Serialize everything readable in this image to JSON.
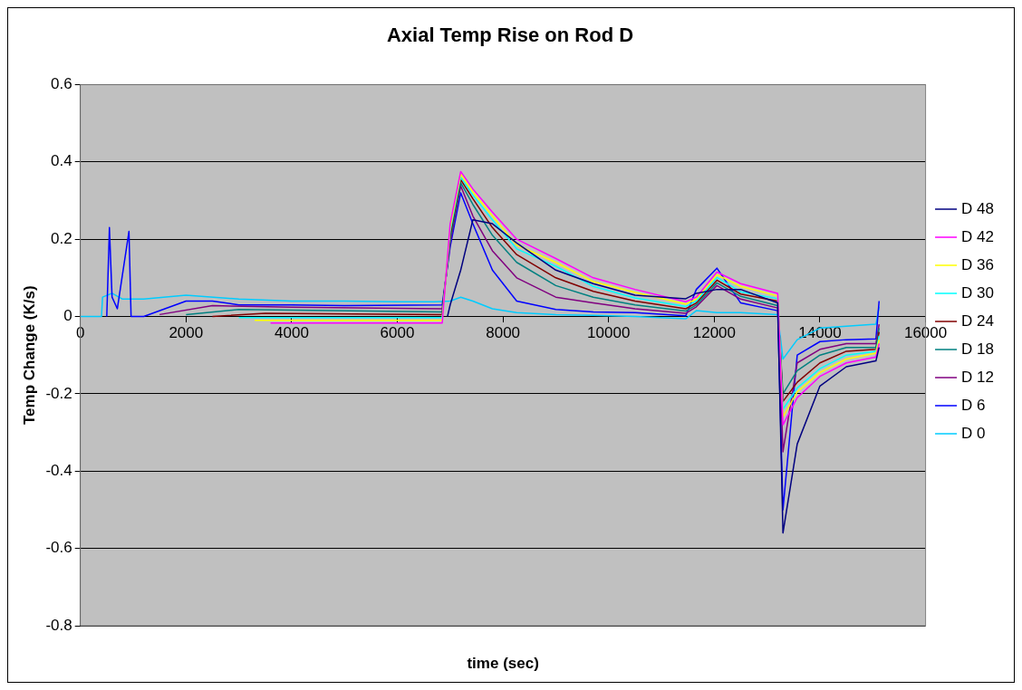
{
  "chart_data": {
    "type": "line",
    "title": "Axial Temp Rise on Rod D",
    "xlabel": "time (sec)",
    "ylabel": "Temp Change (K/s)",
    "xlim": [
      0,
      16000
    ],
    "xticks": [
      0,
      2000,
      4000,
      6000,
      8000,
      10000,
      12000,
      14000,
      16000
    ],
    "ylim": [
      -0.8,
      0.6
    ],
    "yticks": [
      -0.8,
      -0.6,
      -0.4,
      -0.2,
      0,
      0.2,
      0.4,
      0.6
    ],
    "grid": "y",
    "legend": "right",
    "marker": "none",
    "line_style": "solid",
    "series": [
      {
        "name": "D 48",
        "color": "#000080",
        "x": [
          6950,
          7000,
          7200,
          7430,
          7800,
          8260,
          9000,
          9710,
          10500,
          11460,
          11660,
          12050,
          12500,
          13200,
          13300,
          13570,
          14000,
          14500,
          15060,
          15120
        ],
        "values": [
          0,
          0.03,
          0.12,
          0.25,
          0.24,
          0.19,
          0.12,
          0.085,
          0.055,
          0.046,
          0.06,
          0.07,
          0.07,
          0.035,
          -0.56,
          -0.33,
          -0.18,
          -0.13,
          -0.115,
          -0.08
        ]
      },
      {
        "name": "D 42",
        "color": "#ff00ff",
        "x": [
          3600,
          6850,
          7000,
          7200,
          7430,
          7800,
          8260,
          9000,
          9710,
          10500,
          11460,
          11660,
          12050,
          12500,
          13200,
          13300,
          13570,
          14000,
          14500,
          15060,
          15120
        ],
        "values": [
          -0.017,
          -0.017,
          0.24,
          0.375,
          0.33,
          0.27,
          0.2,
          0.15,
          0.1,
          0.07,
          0.038,
          0.05,
          0.115,
          0.085,
          0.06,
          -0.28,
          -0.21,
          -0.155,
          -0.12,
          -0.105,
          -0.07
        ]
      },
      {
        "name": "D 36",
        "color": "#ffff00",
        "x": [
          3300,
          6850,
          7000,
          7200,
          7430,
          7800,
          8260,
          9000,
          9710,
          10500,
          11460,
          11660,
          12050,
          12500,
          13200,
          13300,
          13570,
          14000,
          14500,
          15060,
          15120
        ],
        "values": [
          -0.01,
          -0.01,
          0.23,
          0.368,
          0.322,
          0.26,
          0.185,
          0.14,
          0.09,
          0.062,
          0.032,
          0.045,
          0.108,
          0.078,
          0.053,
          -0.26,
          -0.195,
          -0.145,
          -0.11,
          -0.095,
          -0.06
        ]
      },
      {
        "name": "D 30",
        "color": "#00ffff",
        "x": [
          3000,
          6850,
          7000,
          7200,
          7430,
          7800,
          8260,
          9000,
          9710,
          10500,
          11460,
          11660,
          12050,
          12500,
          13200,
          13300,
          13570,
          14000,
          14500,
          15060,
          15120
        ],
        "values": [
          -0.003,
          -0.003,
          0.22,
          0.361,
          0.314,
          0.25,
          0.175,
          0.13,
          0.078,
          0.048,
          0.026,
          0.04,
          0.101,
          0.064,
          0.046,
          -0.24,
          -0.185,
          -0.135,
          -0.1,
          -0.09,
          -0.05
        ]
      },
      {
        "name": "D 24",
        "color": "#800000",
        "x": [
          2500,
          3500,
          6850,
          7000,
          7200,
          7430,
          7800,
          8260,
          9000,
          9710,
          10500,
          11460,
          11660,
          12050,
          12500,
          13200,
          13300,
          13570,
          14000,
          14500,
          15060,
          15120
        ],
        "values": [
          0,
          0.008,
          0.005,
          0.21,
          0.354,
          0.305,
          0.23,
          0.16,
          0.1,
          0.065,
          0.04,
          0.02,
          0.035,
          0.094,
          0.058,
          0.04,
          -0.22,
          -0.17,
          -0.12,
          -0.09,
          -0.085,
          -0.04
        ]
      },
      {
        "name": "D 18",
        "color": "#008080",
        "x": [
          2000,
          3000,
          6850,
          7000,
          7200,
          7430,
          7800,
          8260,
          9000,
          9710,
          10500,
          11460,
          11660,
          12050,
          12500,
          13200,
          13300,
          13570,
          14000,
          14500,
          15060,
          15120
        ],
        "values": [
          0.005,
          0.018,
          0.012,
          0.2,
          0.346,
          0.29,
          0.21,
          0.14,
          0.08,
          0.05,
          0.03,
          0.014,
          0.03,
          0.087,
          0.052,
          0.028,
          -0.2,
          -0.14,
          -0.1,
          -0.08,
          -0.08,
          -0.03
        ]
      },
      {
        "name": "D 12",
        "color": "#800080",
        "x": [
          1500,
          2500,
          4000,
          6850,
          7000,
          7200,
          7430,
          7800,
          8260,
          9000,
          9710,
          10500,
          11460,
          11660,
          12050,
          12500,
          13200,
          13300,
          13570,
          14000,
          14500,
          15060,
          15120
        ],
        "values": [
          0.005,
          0.028,
          0.024,
          0.02,
          0.19,
          0.338,
          0.26,
          0.17,
          0.1,
          0.05,
          0.035,
          0.02,
          0.008,
          0.025,
          0.08,
          0.045,
          0.022,
          -0.35,
          -0.12,
          -0.085,
          -0.07,
          -0.07,
          -0.02
        ]
      },
      {
        "name": "D 6",
        "color": "#0000ff",
        "x": [
          500,
          550,
          600,
          700,
          920,
          960,
          1200,
          2000,
          2500,
          3000,
          4000,
          5000,
          6850,
          7000,
          7200,
          7430,
          7800,
          8260,
          9000,
          9710,
          10500,
          11460,
          11660,
          12050,
          12500,
          13200,
          13300,
          13570,
          14000,
          14500,
          15060,
          15120
        ],
        "values": [
          0,
          0.23,
          0.05,
          0.02,
          0.22,
          0,
          0,
          0.04,
          0.04,
          0.03,
          0.03,
          0.028,
          0.03,
          0.18,
          0.32,
          0.24,
          0.12,
          0.04,
          0.018,
          0.012,
          0.01,
          0.002,
          0.07,
          0.125,
          0.035,
          0.015,
          -0.5,
          -0.1,
          -0.065,
          -0.06,
          -0.058,
          0.04
        ]
      },
      {
        "name": "D 0",
        "color": "#00ccff",
        "x": [
          0,
          400,
          420,
          600,
          800,
          1200,
          2000,
          3000,
          4000,
          5000,
          6000,
          6700,
          7000,
          7200,
          7430,
          7800,
          8260,
          9000,
          9710,
          10500,
          11460,
          11660,
          12050,
          12500,
          13200,
          13300,
          13570,
          14000,
          14500,
          15060,
          15120
        ],
        "values": [
          0,
          0,
          0.05,
          0.06,
          0.045,
          0.045,
          0.055,
          0.045,
          0.04,
          0.04,
          0.038,
          0.038,
          0.04,
          0.05,
          0.04,
          0.02,
          0.01,
          0.005,
          0.003,
          0,
          -0.006,
          0.015,
          0.01,
          0.01,
          0.005,
          -0.11,
          -0.06,
          -0.03,
          -0.025,
          -0.02,
          0.025
        ]
      }
    ]
  }
}
